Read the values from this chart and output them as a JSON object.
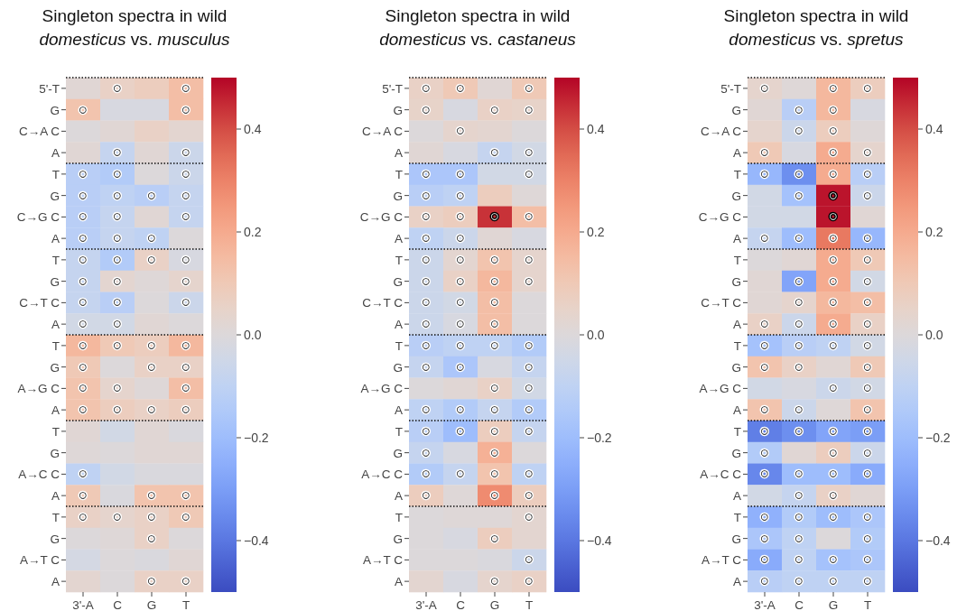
{
  "chart_data": [
    {
      "type": "heatmap",
      "title": "Singleton spectra in wild",
      "subtitle": "domesticus vs. musculus",
      "categories": [
        "3'-A",
        "C",
        "G",
        "T"
      ],
      "y_categories": [
        "5'-T",
        "G",
        "C→A C",
        "A",
        "T",
        "G",
        "C→G C",
        "A",
        "T",
        "G",
        "C→T C",
        "A",
        "T",
        "G",
        "A→G C",
        "A",
        "T",
        "G",
        "A→C C",
        "A",
        "T",
        "G",
        "A→T C",
        "A"
      ],
      "cells": [
        [
          0.02,
          0.06,
          0.08,
          0.14
        ],
        [
          0.12,
          -0.02,
          -0.02,
          0.14
        ],
        [
          0.0,
          0.02,
          0.06,
          0.03
        ],
        [
          0.02,
          -0.08,
          0.02,
          -0.06
        ],
        [
          -0.12,
          -0.14,
          0.0,
          -0.06
        ],
        [
          -0.12,
          -0.1,
          -0.12,
          -0.08
        ],
        [
          -0.12,
          -0.08,
          0.02,
          -0.08
        ],
        [
          -0.12,
          -0.08,
          -0.1,
          0.0
        ],
        [
          -0.08,
          -0.14,
          0.06,
          -0.02
        ],
        [
          -0.08,
          0.03,
          0.01,
          0.04
        ],
        [
          -0.08,
          -0.12,
          0.0,
          -0.06
        ],
        [
          -0.04,
          -0.04,
          0.02,
          0.0
        ],
        [
          0.16,
          0.1,
          0.08,
          0.16
        ],
        [
          0.1,
          0.0,
          0.06,
          0.06
        ],
        [
          0.12,
          0.04,
          0.01,
          0.14
        ],
        [
          0.12,
          0.08,
          0.06,
          0.08
        ],
        [
          0.02,
          -0.04,
          0.02,
          -0.01
        ],
        [
          0.01,
          0.0,
          0.02,
          0.02
        ],
        [
          -0.1,
          -0.04,
          -0.01,
          -0.01
        ],
        [
          0.1,
          -0.01,
          0.12,
          0.12
        ],
        [
          0.06,
          0.04,
          0.06,
          0.1
        ],
        [
          0.0,
          0.01,
          0.06,
          0.0
        ],
        [
          -0.03,
          0.0,
          -0.01,
          0.02
        ],
        [
          0.03,
          0.0,
          0.06,
          0.06
        ]
      ],
      "cell_labels": [
        [
          null,
          "○",
          null,
          "○"
        ],
        [
          "○",
          null,
          null,
          "○"
        ],
        [
          null,
          null,
          null,
          null
        ],
        [
          null,
          "○",
          null,
          "○"
        ],
        [
          "○",
          "○",
          null,
          "○"
        ],
        [
          "○",
          "○",
          "○",
          "○"
        ],
        [
          "○",
          "○",
          null,
          "○"
        ],
        [
          "○",
          "○",
          "○",
          null
        ],
        [
          "○",
          "○",
          "○",
          "○"
        ],
        [
          "○",
          "○",
          null,
          "○"
        ],
        [
          "○",
          "○",
          null,
          "○"
        ],
        [
          "○",
          "○",
          null,
          null
        ],
        [
          "○",
          "○",
          "○",
          "○"
        ],
        [
          "○",
          null,
          "○",
          "○"
        ],
        [
          "○",
          "○",
          null,
          "○"
        ],
        [
          "○",
          "○",
          "○",
          "○"
        ],
        [
          null,
          null,
          null,
          null
        ],
        [
          null,
          null,
          null,
          null
        ],
        [
          "○",
          null,
          null,
          null
        ],
        [
          "○",
          null,
          "○",
          "○"
        ],
        [
          "○",
          "○",
          "○",
          "○"
        ],
        [
          null,
          null,
          "○",
          null
        ],
        [
          null,
          null,
          null,
          null
        ],
        [
          null,
          null,
          "○",
          "○"
        ]
      ],
      "clim": [
        -0.5,
        0.5
      ],
      "cticks": [
        {
          "value": -0.4,
          "label": "−0.4"
        },
        {
          "value": -0.2,
          "label": "−0.2"
        },
        {
          "value": 0,
          "label": "0.0"
        },
        {
          "value": 0.2,
          "label": "0.2"
        },
        {
          "value": 0.4,
          "label": "0.4"
        }
      ]
    },
    {
      "type": "heatmap",
      "title": "Singleton spectra in wild",
      "subtitle": "domesticus vs. castaneus",
      "categories": [
        "3'-A",
        "C",
        "G",
        "T"
      ],
      "y_categories": [
        "5'-T",
        "G",
        "C→A C",
        "A",
        "T",
        "G",
        "C→G C",
        "A",
        "T",
        "G",
        "C→T C",
        "A",
        "T",
        "G",
        "A→G C",
        "A",
        "T",
        "G",
        "A→C C",
        "A",
        "T",
        "G",
        "A→T C",
        "A"
      ],
      "cells": [
        [
          0.06,
          0.1,
          0.02,
          0.1
        ],
        [
          0.05,
          -0.02,
          0.06,
          0.05
        ],
        [
          0.0,
          0.04,
          0.03,
          0.0
        ],
        [
          0.02,
          -0.02,
          -0.08,
          -0.04
        ],
        [
          -0.16,
          -0.16,
          -0.04,
          -0.04
        ],
        [
          -0.12,
          -0.1,
          0.08,
          0.01
        ],
        [
          0.06,
          0.08,
          0.44,
          0.14
        ],
        [
          -0.1,
          -0.06,
          0.02,
          -0.02
        ],
        [
          -0.06,
          0.03,
          0.12,
          0.04
        ],
        [
          -0.06,
          0.06,
          0.16,
          0.04
        ],
        [
          -0.06,
          -0.04,
          0.14,
          0.0
        ],
        [
          -0.06,
          -0.02,
          0.14,
          0.0
        ],
        [
          -0.12,
          -0.1,
          -0.1,
          -0.14
        ],
        [
          -0.08,
          -0.16,
          -0.02,
          -0.08
        ],
        [
          0.0,
          0.02,
          0.06,
          -0.04
        ],
        [
          -0.1,
          -0.14,
          -0.08,
          -0.14
        ],
        [
          -0.12,
          -0.2,
          0.08,
          -0.08
        ],
        [
          -0.08,
          -0.02,
          0.18,
          0.0
        ],
        [
          -0.14,
          -0.08,
          0.12,
          -0.1
        ],
        [
          0.08,
          0.01,
          0.28,
          0.08
        ],
        [
          0.0,
          0.01,
          0.01,
          0.03
        ],
        [
          0.0,
          -0.02,
          0.08,
          0.03
        ],
        [
          0.0,
          0.0,
          -0.01,
          -0.06
        ],
        [
          0.03,
          -0.02,
          0.04,
          0.06
        ]
      ],
      "cell_labels": [
        [
          "○",
          "○",
          null,
          "○"
        ],
        [
          "○",
          null,
          "○",
          "○"
        ],
        [
          null,
          "○",
          null,
          null
        ],
        [
          null,
          null,
          "○",
          "○"
        ],
        [
          "○",
          "○",
          null,
          "○"
        ],
        [
          "○",
          "○",
          null,
          null
        ],
        [
          "○",
          "○",
          "○",
          "○"
        ],
        [
          "○",
          "○",
          null,
          null
        ],
        [
          "○",
          "○",
          "○",
          "○"
        ],
        [
          "○",
          "○",
          "○",
          "○"
        ],
        [
          "○",
          "○",
          "○",
          null
        ],
        [
          "○",
          "○",
          "○",
          null
        ],
        [
          "○",
          "○",
          "○",
          "○"
        ],
        [
          "○",
          "○",
          null,
          "○"
        ],
        [
          null,
          null,
          "○",
          "○"
        ],
        [
          "○",
          "○",
          "○",
          "○"
        ],
        [
          "○",
          "○",
          "○",
          "○"
        ],
        [
          "○",
          null,
          "○",
          null
        ],
        [
          "○",
          "○",
          "○",
          "○"
        ],
        [
          "○",
          null,
          "○",
          "○"
        ],
        [
          null,
          null,
          null,
          "○"
        ],
        [
          null,
          null,
          "○",
          null
        ],
        [
          null,
          null,
          null,
          "○"
        ],
        [
          null,
          null,
          "○",
          "○"
        ]
      ],
      "clim": [
        -0.5,
        0.5
      ],
      "cticks": [
        {
          "value": -0.4,
          "label": "−0.4"
        },
        {
          "value": -0.2,
          "label": "−0.2"
        },
        {
          "value": 0,
          "label": "0.0"
        },
        {
          "value": 0.2,
          "label": "0.2"
        },
        {
          "value": 0.4,
          "label": "0.4"
        }
      ]
    },
    {
      "type": "heatmap",
      "title": "Singleton spectra in wild",
      "subtitle": "domesticus vs. spretus",
      "categories": [
        "3'-A",
        "C",
        "G",
        "T"
      ],
      "y_categories": [
        "5'-T",
        "G",
        "C→A C",
        "A",
        "T",
        "G",
        "C→G C",
        "A",
        "T",
        "G",
        "C→T C",
        "A",
        "T",
        "G",
        "A→G C",
        "A",
        "T",
        "G",
        "A→C C",
        "A",
        "T",
        "G",
        "A→T C",
        "A"
      ],
      "cells": [
        [
          0.04,
          0.01,
          0.16,
          0.08
        ],
        [
          0.02,
          -0.12,
          0.16,
          -0.02
        ],
        [
          0.04,
          -0.06,
          0.08,
          0.01
        ],
        [
          0.1,
          -0.02,
          0.2,
          0.04
        ],
        [
          -0.22,
          -0.34,
          0.2,
          -0.12
        ],
        [
          -0.04,
          -0.18,
          0.48,
          -0.06
        ],
        [
          -0.04,
          -0.04,
          0.48,
          0.02
        ],
        [
          -0.08,
          -0.2,
          0.32,
          -0.22
        ],
        [
          0.0,
          0.02,
          0.2,
          0.1
        ],
        [
          0.02,
          -0.28,
          0.2,
          -0.04
        ],
        [
          0.02,
          0.04,
          0.16,
          0.14
        ],
        [
          0.06,
          -0.06,
          0.2,
          0.06
        ],
        [
          -0.18,
          -0.12,
          -0.1,
          -0.04
        ],
        [
          0.12,
          0.06,
          0.02,
          0.1
        ],
        [
          -0.04,
          -0.02,
          -0.06,
          -0.04
        ],
        [
          0.12,
          -0.06,
          0.01,
          0.12
        ],
        [
          -0.38,
          -0.34,
          -0.28,
          -0.3
        ],
        [
          -0.14,
          0.02,
          0.08,
          -0.06
        ],
        [
          -0.36,
          -0.2,
          -0.2,
          -0.26
        ],
        [
          -0.04,
          -0.08,
          0.06,
          0.02
        ],
        [
          -0.24,
          -0.14,
          -0.2,
          -0.16
        ],
        [
          -0.16,
          -0.1,
          0.0,
          -0.14
        ],
        [
          -0.26,
          -0.1,
          -0.18,
          -0.16
        ],
        [
          -0.12,
          -0.1,
          -0.1,
          -0.1
        ]
      ],
      "cell_labels": [
        [
          "○",
          null,
          "○",
          "○"
        ],
        [
          null,
          "○",
          "○",
          null
        ],
        [
          null,
          "○",
          "○",
          null
        ],
        [
          "○",
          null,
          "○",
          "○"
        ],
        [
          "○",
          "○",
          "○",
          "○"
        ],
        [
          null,
          "○",
          "○",
          "○"
        ],
        [
          null,
          null,
          "○",
          null
        ],
        [
          "○",
          "○",
          "○",
          "○"
        ],
        [
          null,
          null,
          "○",
          "○"
        ],
        [
          null,
          "○",
          "○",
          "○"
        ],
        [
          null,
          "○",
          "○",
          "○"
        ],
        [
          "○",
          "○",
          "○",
          "○"
        ],
        [
          "○",
          "○",
          "○",
          "○"
        ],
        [
          "○",
          "○",
          null,
          "○"
        ],
        [
          null,
          null,
          "○",
          "○"
        ],
        [
          "○",
          "○",
          null,
          "○"
        ],
        [
          "○",
          "○",
          "○",
          "○"
        ],
        [
          "○",
          null,
          "○",
          "○"
        ],
        [
          "○",
          "○",
          "○",
          "○"
        ],
        [
          null,
          "○",
          "○",
          null
        ],
        [
          "○",
          "○",
          "○",
          "○"
        ],
        [
          "○",
          "○",
          null,
          "○"
        ],
        [
          "○",
          "○",
          "○",
          "○"
        ],
        [
          "○",
          "○",
          "○",
          "○"
        ]
      ],
      "clim": [
        -0.5,
        0.5
      ],
      "cticks": [
        {
          "value": -0.4,
          "label": "−0.4"
        },
        {
          "value": -0.2,
          "label": "−0.2"
        },
        {
          "value": 0,
          "label": "0.0"
        },
        {
          "value": 0.2,
          "label": "0.2"
        },
        {
          "value": 0.4,
          "label": "0.4"
        }
      ]
    }
  ]
}
